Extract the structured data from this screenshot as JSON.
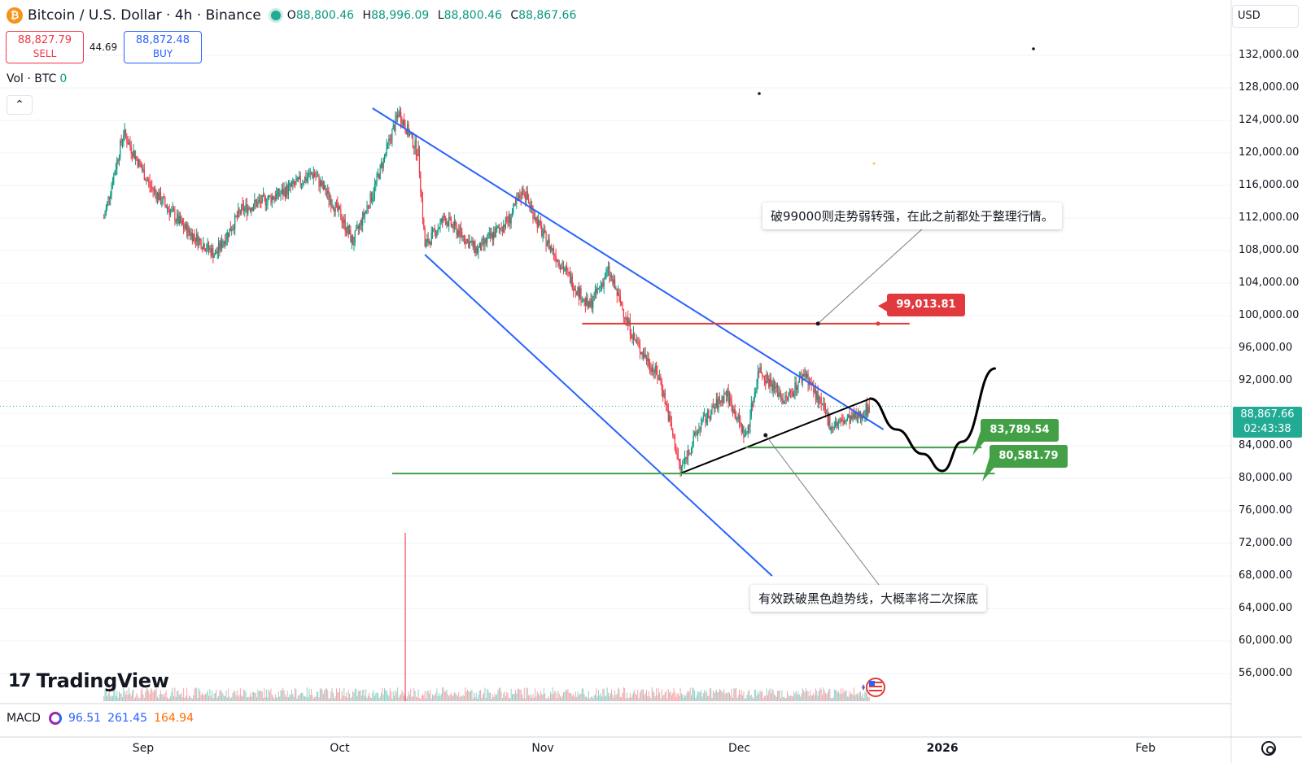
{
  "header": {
    "coin_glyph": "₿",
    "title": "Bitcoin / U.S. Dollar · 4h · Binance",
    "o_label": "O",
    "o_value": "88,800.46",
    "h_label": "H",
    "h_value": "88,996.09",
    "l_label": "L",
    "l_value": "88,800.46",
    "c_label": "C",
    "c_value": "88,867.66"
  },
  "trade": {
    "sell_price": "88,827.79",
    "sell_label": "SELL",
    "spread": "44.69",
    "buy_price": "88,872.48",
    "buy_label": "BUY"
  },
  "volume_legend": {
    "label": "Vol · BTC",
    "value": "0"
  },
  "collapse_glyph": "⌃",
  "currency": "USD",
  "last_price": {
    "value": "88,867.66",
    "countdown": "02:43:38"
  },
  "y_axis_labels": [
    "132,000.00",
    "128,000.00",
    "124,000.00",
    "120,000.00",
    "116,000.00",
    "112,000.00",
    "108,000.00",
    "104,000.00",
    "100,000.00",
    "96,000.00",
    "92,000.00",
    "84,000.00",
    "80,000.00",
    "76,000.00",
    "72,000.00",
    "68,000.00",
    "64,000.00",
    "60,000.00",
    "56,000.00"
  ],
  "x_axis_labels": [
    "Sep",
    "Oct",
    "Nov",
    "Dec",
    "2026",
    "Feb"
  ],
  "macd": {
    "label": "MACD",
    "v1": "96.51",
    "v2": "261.45",
    "v3": "164.94"
  },
  "annotations": {
    "note_top": "破99000则走势弱转强，在此之前都处于整理行情。",
    "note_bottom": "有效跌破黑色趋势线，大概率将二次探底",
    "level_resistance": "99,013.81",
    "level_support_1": "83,789.54",
    "level_support_2": "80,581.79"
  },
  "brand": {
    "name": "TradingView"
  },
  "colors": {
    "up": "#089981",
    "down": "#f23645",
    "channel": "#2962ff",
    "resistance": "#e53935",
    "support": "#43a047",
    "trend": "#000000"
  },
  "icons": {
    "coin": "bitcoin-icon",
    "live": "live-status-icon",
    "macd": "macd-indicator-icon",
    "settings": "settings-gear-icon",
    "flag": "us-flag-event-icon",
    "collapse": "chevron-up-icon"
  },
  "chart_data": {
    "type": "candlestick",
    "symbol": "Bitcoin / U.S. Dollar",
    "interval": "4h",
    "exchange": "Binance",
    "x_ticks": [
      "Sep",
      "Oct",
      "Nov",
      "Dec",
      "2026",
      "Feb"
    ],
    "ylim": [
      54000,
      134000
    ],
    "y_ticks": [
      56000,
      60000,
      64000,
      68000,
      72000,
      76000,
      80000,
      84000,
      88000,
      92000,
      96000,
      100000,
      104000,
      108000,
      112000,
      116000,
      120000,
      124000,
      128000,
      132000
    ],
    "last_price": 88867.66,
    "approx_close_path": [
      {
        "x": "Aug 26",
        "y": 112000
      },
      {
        "x": "Aug 29",
        "y": 122500
      },
      {
        "x": "Sep 2",
        "y": 116000
      },
      {
        "x": "Sep 7",
        "y": 111000
      },
      {
        "x": "Sep 12",
        "y": 107500
      },
      {
        "x": "Sep 16",
        "y": 113000
      },
      {
        "x": "Sep 22",
        "y": 115000
      },
      {
        "x": "Sep 27",
        "y": 117500
      },
      {
        "x": "Oct 1",
        "y": 112500
      },
      {
        "x": "Oct 3",
        "y": 109000
      },
      {
        "x": "Oct 6",
        "y": 115000
      },
      {
        "x": "Oct 10",
        "y": 125000
      },
      {
        "x": "Oct 13",
        "y": 120000
      },
      {
        "x": "Oct 14",
        "y": 108500
      },
      {
        "x": "Oct 17",
        "y": 112000
      },
      {
        "x": "Oct 22",
        "y": 108000
      },
      {
        "x": "Oct 27",
        "y": 112000
      },
      {
        "x": "Oct 29",
        "y": 115500
      },
      {
        "x": "Nov 1",
        "y": 110000
      },
      {
        "x": "Nov 4",
        "y": 106000
      },
      {
        "x": "Nov 8",
        "y": 101000
      },
      {
        "x": "Nov 11",
        "y": 105500
      },
      {
        "x": "Nov 15",
        "y": 97000
      },
      {
        "x": "Nov 19",
        "y": 92000
      },
      {
        "x": "Nov 22",
        "y": 81000
      },
      {
        "x": "Nov 25",
        "y": 86500
      },
      {
        "x": "Nov 29",
        "y": 90500
      },
      {
        "x": "Dec 2",
        "y": 85000
      },
      {
        "x": "Dec 4",
        "y": 93500
      },
      {
        "x": "Dec 8",
        "y": 89500
      },
      {
        "x": "Dec 11",
        "y": 93000
      },
      {
        "x": "Dec 15",
        "y": 86500
      },
      {
        "x": "Dec 19",
        "y": 87500
      },
      {
        "x": "Dec 21",
        "y": 88867.66
      }
    ],
    "horizontal_levels": [
      {
        "label": "99,013.81",
        "price": 99013.81,
        "color": "#e53935"
      },
      {
        "label": "83,789.54",
        "price": 83789.54,
        "color": "#43a047"
      },
      {
        "label": "80,581.79",
        "price": 80581.79,
        "color": "#43a047"
      }
    ],
    "drawings": {
      "channel_upper": [
        {
          "x": "Oct 6",
          "y": 125500
        },
        {
          "x": "Dec 23",
          "y": 86000
        }
      ],
      "channel_lower": [
        {
          "x": "Oct 14",
          "y": 107500
        },
        {
          "x": "Dec 6",
          "y": 68000
        }
      ],
      "black_trendline": [
        {
          "x": "Nov 22",
          "y": 80600
        },
        {
          "x": "Dec 21",
          "y": 89800
        }
      ],
      "projection_path": [
        {
          "x": "Dec 21",
          "y": 89800
        },
        {
          "x": "Dec 25",
          "y": 86000
        },
        {
          "x": "Dec 29",
          "y": 83000
        },
        {
          "x": "Jan 1",
          "y": 80900
        },
        {
          "x": "Jan 4",
          "y": 84500
        },
        {
          "x": "Jan 9",
          "y": 93500
        }
      ]
    },
    "macd": {
      "macd": 96.51,
      "signal": 261.45,
      "histogram": 164.94
    }
  }
}
